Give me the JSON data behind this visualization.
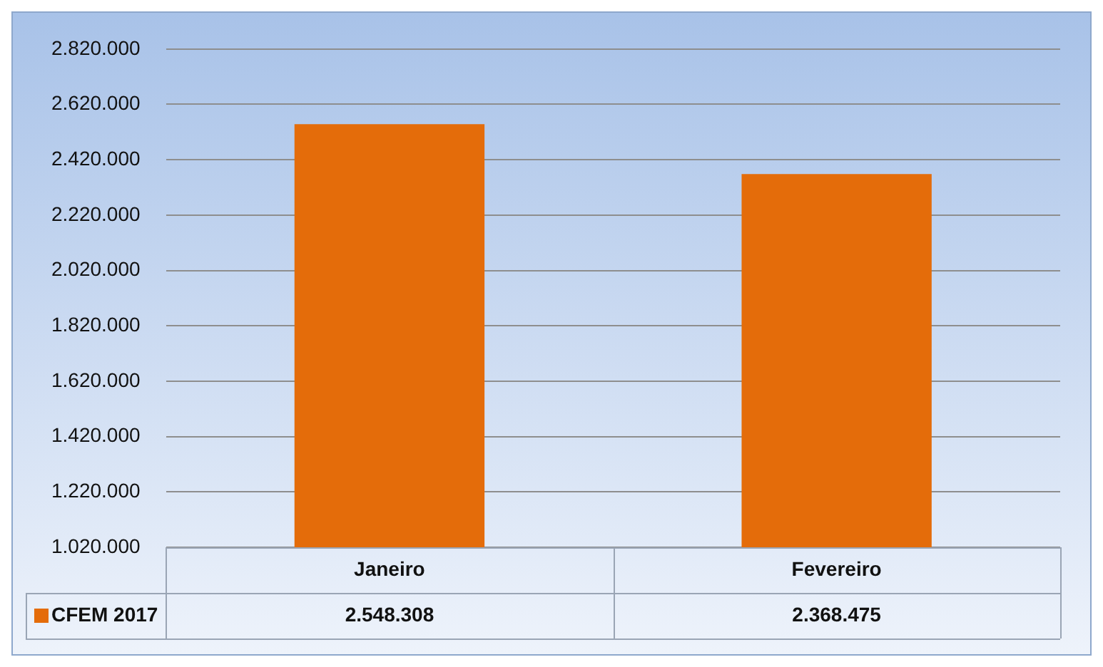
{
  "chart_data": {
    "type": "bar",
    "categories": [
      "Janeiro",
      "Fevereiro"
    ],
    "series": [
      {
        "name": "CFEM 2017",
        "color": "#e46c0a",
        "values": [
          2548308,
          2368475
        ],
        "value_labels": [
          "2.548.308",
          "2.368.475"
        ]
      }
    ],
    "ylim": [
      1020000,
      2820000
    ],
    "yticks": [
      {
        "value": 1020000,
        "label": "1.020.000"
      },
      {
        "value": 1220000,
        "label": "1.220.000"
      },
      {
        "value": 1420000,
        "label": "1.420.000"
      },
      {
        "value": 1620000,
        "label": "1.620.000"
      },
      {
        "value": 1820000,
        "label": "1.820.000"
      },
      {
        "value": 2020000,
        "label": "2.020.000"
      },
      {
        "value": 2220000,
        "label": "2.220.000"
      },
      {
        "value": 2420000,
        "label": "2.420.000"
      },
      {
        "value": 2620000,
        "label": "2.620.000"
      },
      {
        "value": 2820000,
        "label": "2.820.000"
      }
    ],
    "grid": "y",
    "legend": "bottom"
  }
}
